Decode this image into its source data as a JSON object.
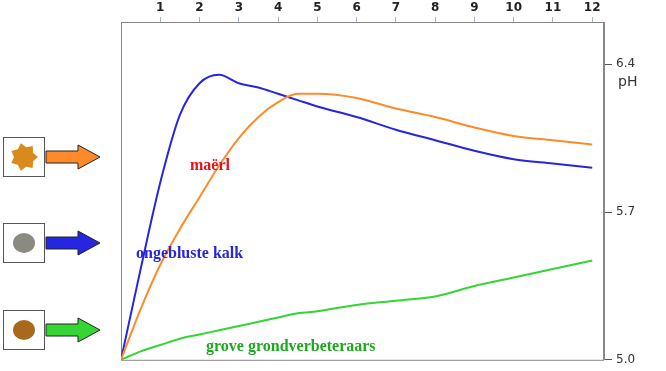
{
  "chart_data": {
    "type": "line",
    "y_label": "pH",
    "x": [
      0,
      0.5,
      1,
      1.5,
      2,
      2.5,
      3,
      3.5,
      4,
      4.5,
      5,
      6,
      7,
      8,
      9,
      10,
      11,
      12
    ],
    "series": [
      {
        "name": "maërl",
        "color": "#ff8a2a",
        "values": [
          5.0,
          5.24,
          5.45,
          5.62,
          5.77,
          5.92,
          6.05,
          6.15,
          6.22,
          6.26,
          6.26,
          6.24,
          6.19,
          6.15,
          6.1,
          6.06,
          6.04,
          6.02
        ]
      },
      {
        "name": "ongebluste kalk",
        "color": "#2626e0",
        "values": [
          5.0,
          5.43,
          5.84,
          6.16,
          6.31,
          6.35,
          6.31,
          6.29,
          6.26,
          6.23,
          6.2,
          6.15,
          6.09,
          6.04,
          5.99,
          5.95,
          5.93,
          5.91
        ]
      },
      {
        "name": "grove grondverbeteraars",
        "color": "#33d633",
        "values": [
          5.0,
          5.04,
          5.07,
          5.1,
          5.12,
          5.14,
          5.16,
          5.18,
          5.2,
          5.22,
          5.23,
          5.26,
          5.28,
          5.3,
          5.35,
          5.39,
          5.43,
          5.47
        ]
      }
    ],
    "xlim": [
      0,
      12.3
    ],
    "xticks": [
      1,
      2,
      3,
      4,
      5,
      6,
      7,
      8,
      9,
      10,
      11,
      12
    ],
    "ylim": [
      5.0,
      6.6
    ],
    "yticks": [
      {
        "value": 5.0,
        "label": "5.0"
      },
      {
        "value": 5.7,
        "label": "5.7"
      },
      {
        "value": 6.4,
        "label": "6.4"
      }
    ],
    "grid": false
  }
}
